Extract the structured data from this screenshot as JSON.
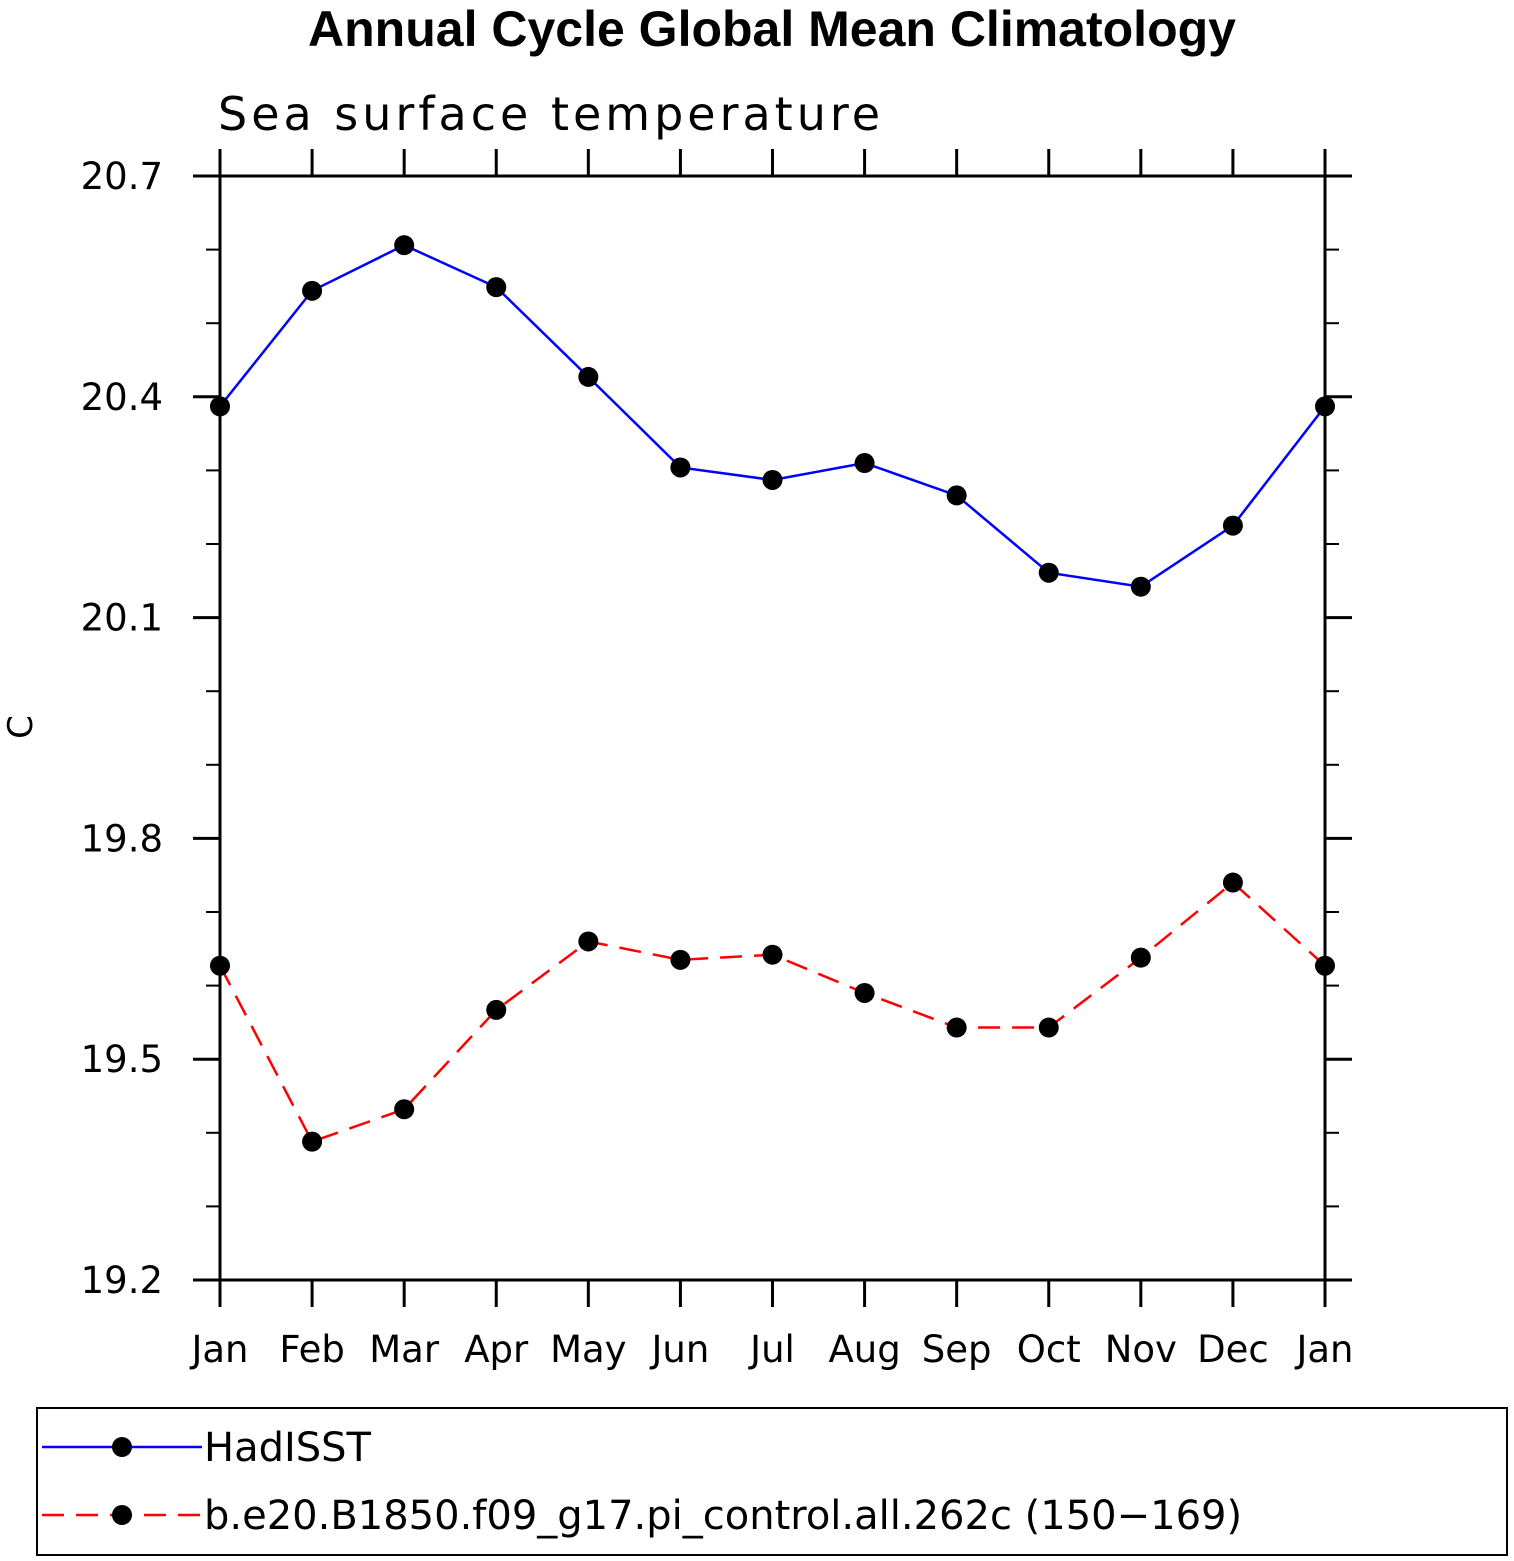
{
  "chart_data": {
    "type": "line",
    "title": "Annual Cycle Global Mean Climatology",
    "subtitle": "Sea surface temperature",
    "xlabel": "",
    "ylabel": "C",
    "categories": [
      "Jan",
      "Feb",
      "Mar",
      "Apr",
      "May",
      "Jun",
      "Jul",
      "Aug",
      "Sep",
      "Oct",
      "Nov",
      "Dec",
      "Jan"
    ],
    "ylim": [
      19.2,
      20.7
    ],
    "yticks": [
      "20.7",
      "20.4",
      "20.1",
      "19.8",
      "19.5",
      "19.2"
    ],
    "minor_ytick_step": 0.1,
    "grid": false,
    "legend_position": "bottom",
    "series": [
      {
        "name": "HadISST",
        "color": "#0000ff",
        "dash": "solid",
        "marker": "filled-circle",
        "values": [
          20.387,
          20.544,
          20.606,
          20.549,
          20.427,
          20.304,
          20.287,
          20.31,
          20.266,
          20.161,
          20.142,
          20.225,
          20.387
        ]
      },
      {
        "name": "b.e20.B1850.f09_g17.pi_control.all.262c (150−169)",
        "color": "#ff0000",
        "dash": "dashed",
        "marker": "filled-circle",
        "values": [
          19.627,
          19.388,
          19.432,
          19.567,
          19.66,
          19.635,
          19.642,
          19.59,
          19.543,
          19.543,
          19.638,
          19.74,
          19.627
        ]
      }
    ]
  }
}
